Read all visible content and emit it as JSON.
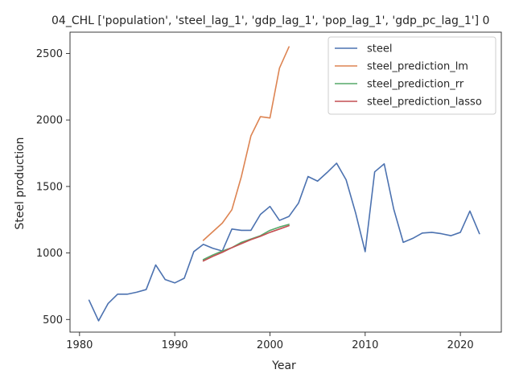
{
  "chart_data": {
    "type": "line",
    "title": "04_CHL ['population', 'steel_lag_1', 'gdp_lag_1', 'pop_lag_1', 'gdp_pc_lag_1'] 0",
    "xlabel": "Year",
    "ylabel": "Steel production",
    "xlim": [
      1979,
      2024.3
    ],
    "ylim": [
      405,
      2660
    ],
    "xticks": [
      1980,
      1990,
      2000,
      2010,
      2020
    ],
    "yticks": [
      500,
      1000,
      1500,
      2000,
      2500
    ],
    "grid": false,
    "legend_position": "top-right",
    "series": [
      {
        "name": "steel",
        "color": "#4c72b0",
        "x": [
          1981,
          1982,
          1983,
          1984,
          1985,
          1986,
          1987,
          1988,
          1989,
          1990,
          1991,
          1992,
          1993,
          1994,
          1995,
          1996,
          1997,
          1998,
          1999,
          2000,
          2001,
          2002,
          2003,
          2004,
          2005,
          2006,
          2007,
          2008,
          2009,
          2010,
          2011,
          2012,
          2013,
          2014,
          2015,
          2016,
          2017,
          2018,
          2019,
          2020,
          2021,
          2022
        ],
        "y": [
          645,
          490,
          620,
          690,
          690,
          705,
          725,
          910,
          800,
          775,
          810,
          1010,
          1065,
          1035,
          1015,
          1180,
          1170,
          1170,
          1290,
          1350,
          1245,
          1275,
          1375,
          1575,
          1540,
          1605,
          1675,
          1550,
          1300,
          1010,
          1610,
          1670,
          1330,
          1080,
          1110,
          1150,
          1155,
          1145,
          1130,
          1155,
          1315,
          1145
        ]
      },
      {
        "name": "steel_prediction_lm",
        "color": "#dd8452",
        "x": [
          1993,
          1994,
          1995,
          1996,
          1997,
          1998,
          1999,
          2000,
          2001,
          2002
        ],
        "y": [
          1095,
          1160,
          1225,
          1325,
          1575,
          1880,
          2025,
          2015,
          2390,
          2550
        ]
      },
      {
        "name": "steel_prediction_rr",
        "color": "#55a868",
        "x": [
          1993,
          1994,
          1995,
          1996,
          1997,
          1998,
          1999,
          2000,
          2001,
          2002
        ],
        "y": [
          950,
          985,
          1015,
          1040,
          1080,
          1105,
          1130,
          1170,
          1195,
          1215
        ]
      },
      {
        "name": "steel_prediction_lasso",
        "color": "#c44e52",
        "x": [
          1993,
          1994,
          1995,
          1996,
          1997,
          1998,
          1999,
          2000,
          2001,
          2002
        ],
        "y": [
          940,
          975,
          1005,
          1040,
          1070,
          1100,
          1125,
          1155,
          1180,
          1205
        ]
      }
    ]
  }
}
